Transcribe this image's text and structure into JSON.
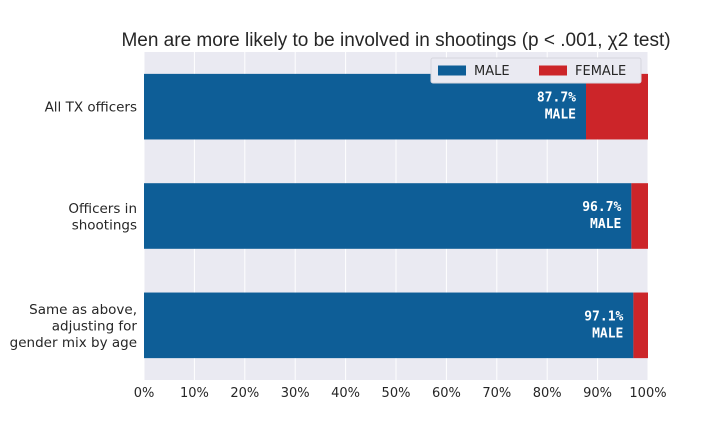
{
  "chart_data": {
    "type": "bar",
    "orientation": "horizontal",
    "stacked": true,
    "title": "Men are more likely to be involved in shootings (p < .001, χ2 test)",
    "categories": [
      [
        "All TX officers"
      ],
      [
        "Officers in",
        "shootings"
      ],
      [
        "Same as above,",
        "adjusting for",
        "gender mix by age"
      ]
    ],
    "series": [
      {
        "name": "MALE",
        "color": "#0e5e97",
        "values": [
          87.7,
          96.7,
          97.1
        ]
      },
      {
        "name": "FEMALE",
        "color": "#cc2529",
        "values": [
          12.3,
          3.3,
          2.9
        ]
      }
    ],
    "data_labels": [
      [
        "87.7%",
        "MALE"
      ],
      [
        "96.7%",
        "MALE"
      ],
      [
        "97.1%",
        "MALE"
      ]
    ],
    "x_ticks": [
      "0%",
      "10%",
      "20%",
      "30%",
      "40%",
      "50%",
      "60%",
      "70%",
      "80%",
      "90%",
      "100%"
    ],
    "xlim": [
      0,
      100
    ],
    "grid": true,
    "legend_position": "top-right",
    "background_color": "#eaeaf2"
  }
}
